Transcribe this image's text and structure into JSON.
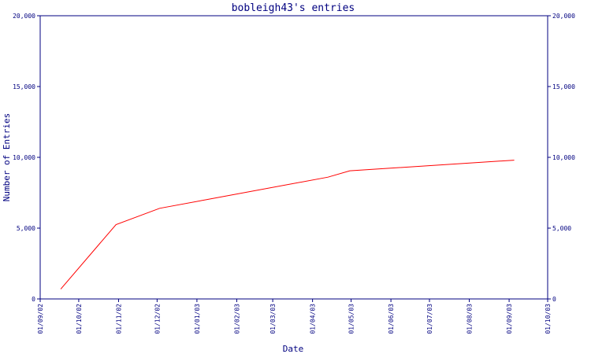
{
  "chart_data": {
    "type": "line",
    "title": "bobleigh43's entries",
    "xlabel": "Date",
    "ylabel": "Number of Entries",
    "x_range": [
      "2002-09-01",
      "2003-10-01"
    ],
    "ylim": [
      0,
      20000
    ],
    "x_ticks": [
      "01/09/02",
      "01/10/02",
      "01/11/02",
      "01/12/02",
      "01/01/03",
      "01/02/03",
      "01/03/03",
      "01/04/03",
      "01/05/03",
      "01/06/03",
      "01/07/03",
      "01/08/03",
      "01/09/03",
      "01/10/03"
    ],
    "x_tick_dates": [
      "2002-09-01",
      "2002-10-01",
      "2002-11-01",
      "2002-12-01",
      "2003-01-01",
      "2003-02-01",
      "2003-03-01",
      "2003-04-01",
      "2003-05-01",
      "2003-06-01",
      "2003-07-01",
      "2003-08-01",
      "2003-09-01",
      "2003-10-01"
    ],
    "y_ticks": [
      {
        "value": 0,
        "label": "0"
      },
      {
        "value": 5000,
        "label": "5,000"
      },
      {
        "value": 10000,
        "label": "10,000"
      },
      {
        "value": 15000,
        "label": "15,000"
      },
      {
        "value": 20000,
        "label": "20,000"
      }
    ],
    "grid": false,
    "series": [
      {
        "color": "#ff0000",
        "points": [
          {
            "x": "2002-09-17",
            "y": 700
          },
          {
            "x": "2002-10-30",
            "y": 5250
          },
          {
            "x": "2002-12-03",
            "y": 6400
          },
          {
            "x": "2003-04-13",
            "y": 8600
          },
          {
            "x": "2003-04-30",
            "y": 9050
          },
          {
            "x": "2003-09-05",
            "y": 9800
          }
        ]
      }
    ],
    "colors": {
      "axis": "#000080",
      "text": "#000080",
      "line": "#ff0000"
    }
  }
}
